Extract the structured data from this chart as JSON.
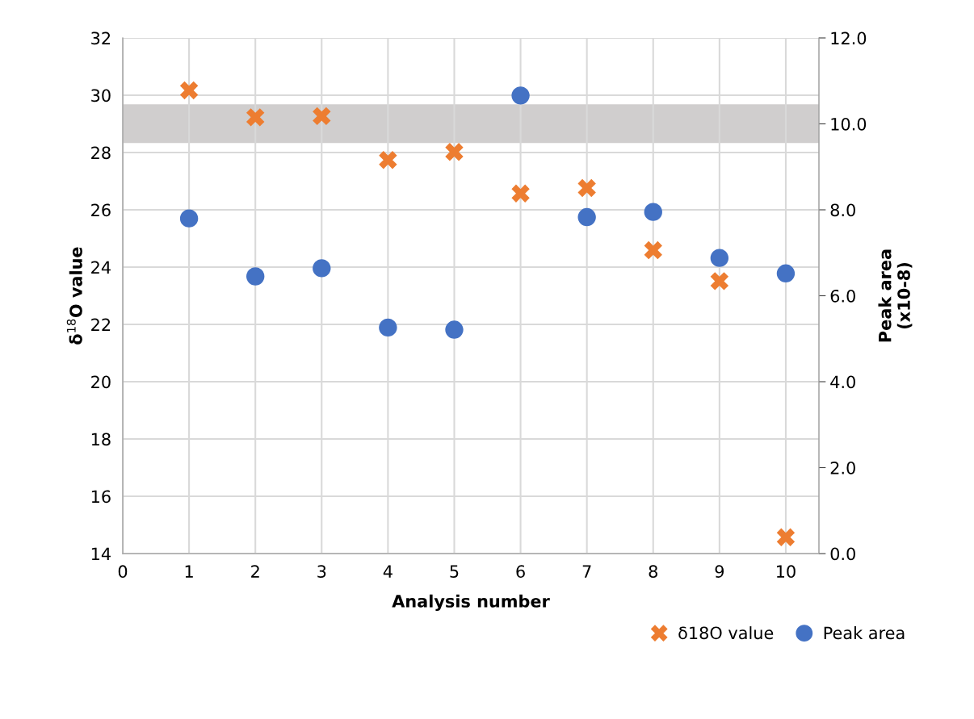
{
  "chart_data": {
    "type": "scatter",
    "xlabel": "Analysis number",
    "ylabel": "δ$^{18}$O value",
    "y2label": "Peak area\n(x10-8)",
    "xlim": [
      0,
      10.5
    ],
    "xticks": [
      0,
      1,
      2,
      3,
      4,
      5,
      6,
      7,
      8,
      9,
      10
    ],
    "ylim": [
      14,
      32
    ],
    "yticks": [
      14,
      16,
      18,
      20,
      22,
      24,
      26,
      28,
      30,
      32
    ],
    "y2lim": [
      0,
      12
    ],
    "y2ticks": [
      {
        "value": 0,
        "label": "0.0"
      },
      {
        "value": 2,
        "label": "2.0"
      },
      {
        "value": 4,
        "label": "4.0"
      },
      {
        "value": 6,
        "label": "6.0"
      },
      {
        "value": 8,
        "label": "8.0"
      },
      {
        "value": 10,
        "label": "10.0"
      },
      {
        "value": 12,
        "label": "12.0"
      }
    ],
    "x": [
      1,
      2,
      3,
      4,
      5,
      6,
      7,
      8,
      9,
      10
    ],
    "series": [
      {
        "name": "δ18O value",
        "color": "#ed7d31",
        "marker": "cross",
        "values": [
          30.17,
          29.23,
          29.27,
          27.74,
          28.02,
          26.57,
          26.76,
          24.59,
          23.51,
          14.57
        ]
      },
      {
        "name": "Peak area",
        "color": "#4472c4",
        "marker": "circle",
        "axis": "y2",
        "values": [
          7.8,
          6.45,
          6.64,
          5.26,
          5.21,
          10.66,
          7.83,
          7.95,
          6.88,
          6.52
        ]
      }
    ],
    "bands": [
      {
        "axis": "y",
        "from": 28.33,
        "to": 29.68,
        "color": "#d0cece"
      }
    ],
    "grid": true,
    "legend": "bottom right"
  }
}
